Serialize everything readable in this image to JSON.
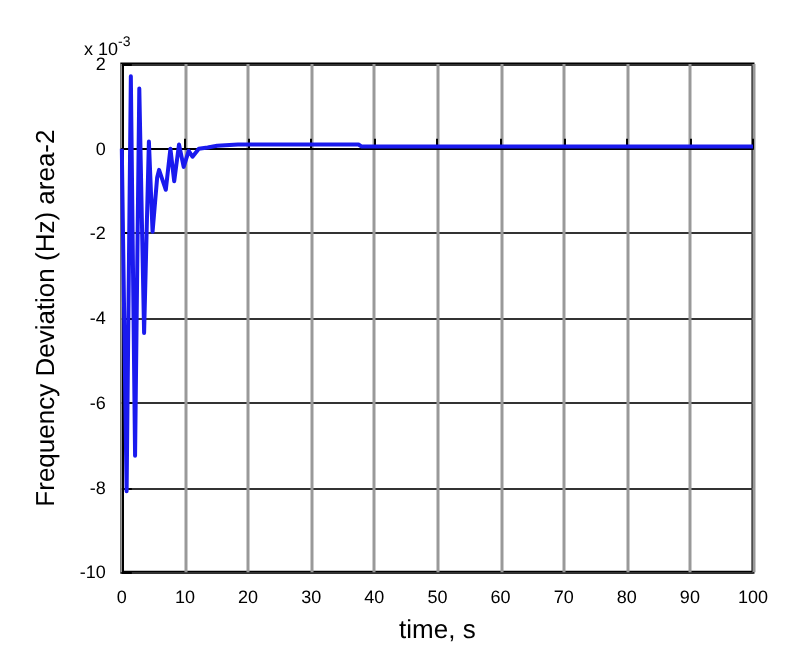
{
  "chart_data": {
    "type": "line",
    "xlabel": "time, s",
    "ylabel": "Frequency Deviation (Hz) area-2",
    "annotations": [
      "x 10$^{-3}$"
    ],
    "x": [
      0,
      0.76,
      1.43,
      2.1,
      2.77,
      3.53,
      4.29,
      4.87,
      5.6,
      5.9,
      6.97,
      7.7,
      8.3,
      9.06,
      9.8,
      10.6,
      11.2,
      12.2,
      13.6,
      15.1,
      18.4,
      37.5,
      38,
      100
    ],
    "series": [
      {
        "color": "#1a1aee",
        "values": [
          0,
          -8.09,
          1.71,
          -7.25,
          1.42,
          -4.35,
          0.17,
          -1.96,
          -0.68,
          -0.5,
          -0.97,
          0,
          -0.77,
          0.1,
          -0.43,
          -0.05,
          -0.19,
          0,
          0.03,
          0.07,
          0.1,
          0.1,
          0.05,
          0.05
        ]
      }
    ],
    "xlim": [
      0,
      100
    ],
    "xticks": [
      0,
      10,
      20,
      30,
      40,
      50,
      60,
      70,
      80,
      90,
      100
    ],
    "ylim": [
      -10,
      2
    ],
    "yticks": [
      -10,
      -8,
      -6,
      -4,
      -2,
      0,
      2
    ],
    "grid": true,
    "marker": "none",
    "line_style": "solid"
  }
}
